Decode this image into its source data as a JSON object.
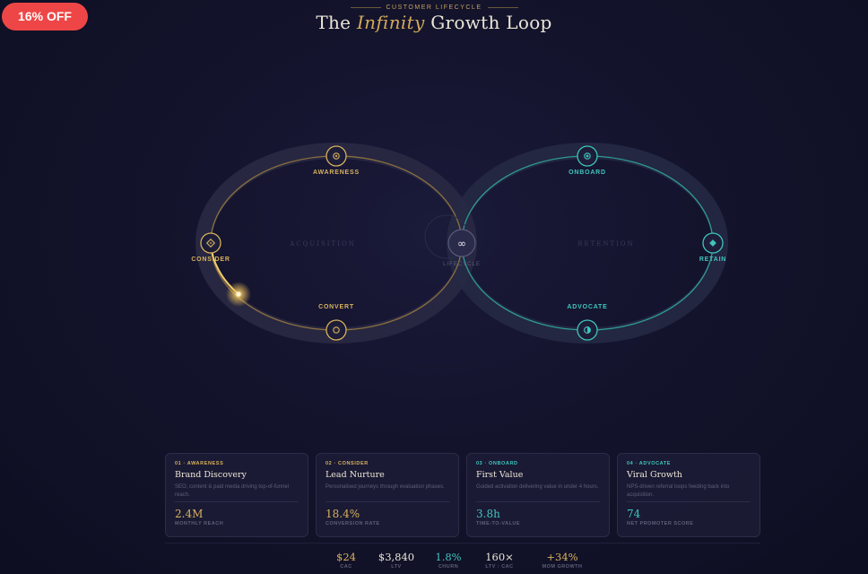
{
  "promo": {
    "label": "16% OFF"
  },
  "header": {
    "eyebrow": "CUSTOMER LIFECYCLE",
    "title_pre": "The",
    "title_em": "Infinity",
    "title_post": "Growth Loop"
  },
  "diagram": {
    "left_loop_label": "ACQUISITION",
    "right_loop_label": "RETENTION",
    "center_label": "LIFECYCLE",
    "nodes": [
      {
        "label": "AWARENESS",
        "icon": "target-icon"
      },
      {
        "label": "CONSIDER",
        "icon": "diamond-icon"
      },
      {
        "label": "CONVERT",
        "icon": "circle-icon"
      },
      {
        "label": "ONBOARD",
        "icon": "dot-icon"
      },
      {
        "label": "RETAIN",
        "icon": "diamond-filled-icon"
      },
      {
        "label": "ADVOCATE",
        "icon": "half-circle-icon"
      }
    ],
    "progress": 0.3
  },
  "cards": [
    {
      "step": "01 · AWARENESS",
      "title": "Brand Discovery",
      "desc": "SEO, content & paid media driving top-of-funnel reach.",
      "metric": "2.4M",
      "metric_label": "MONTHLY REACH",
      "accent": "#d9b25c"
    },
    {
      "step": "02 · CONSIDER",
      "title": "Lead Nurture",
      "desc": "Personalised journeys through evaluation phases.",
      "metric": "18.4%",
      "metric_label": "CONVERSION RATE",
      "accent": "#d9b25c"
    },
    {
      "step": "03 · ONBOARD",
      "title": "First Value",
      "desc": "Guided activation delivering value in under 4 hours.",
      "metric": "3.8h",
      "metric_label": "TIME-TO-VALUE",
      "accent": "#3fc6bd"
    },
    {
      "step": "04 · ADVOCATE",
      "title": "Viral Growth",
      "desc": "NPS-driven referral loops feeding back into acquisition.",
      "metric": "74",
      "metric_label": "NET PROMOTER SCORE",
      "accent": "#3fc6bd"
    }
  ],
  "stats": [
    {
      "value": "$24",
      "label": "CAC"
    },
    {
      "value": "$3,840",
      "label": "LTV"
    },
    {
      "value": "1.8%",
      "label": "CHURN"
    },
    {
      "value": "160×",
      "label": "LTV : CAC"
    },
    {
      "value": "+34%",
      "label": "MOM GROWTH"
    }
  ],
  "colors": {
    "gold": "#d9b25c",
    "teal": "#3fc6bd",
    "promo": "#ee4646"
  }
}
